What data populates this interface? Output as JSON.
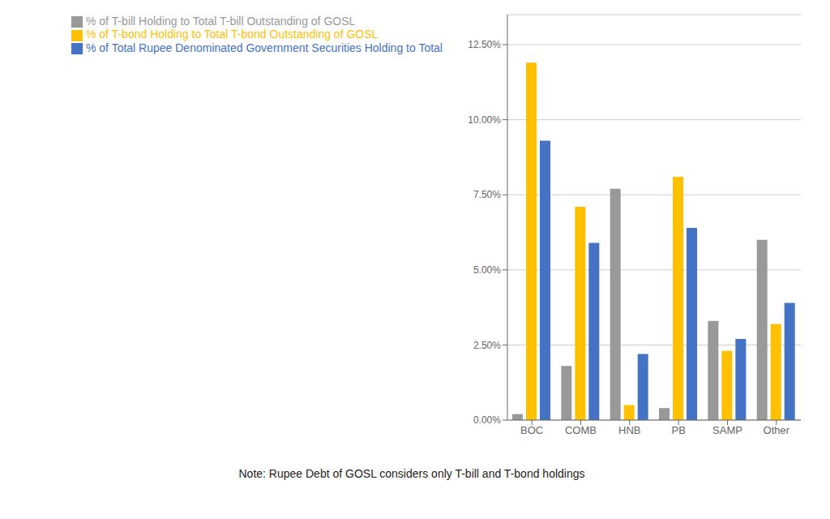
{
  "chart_data": {
    "type": "bar",
    "categories": [
      "BOC",
      "COMB",
      "HNB",
      "PB",
      "SAMP",
      "Other"
    ],
    "series": [
      {
        "name": "% of T-bill Holding to Total T-bill Outstanding of GOSL",
        "color": "#999999",
        "values": [
          0.2,
          1.8,
          7.7,
          0.4,
          3.3,
          6.0
        ]
      },
      {
        "name": "% of T-bond Holding to Total T-bond Outstanding of GOSL",
        "color": "#FFC000",
        "values": [
          11.9,
          7.1,
          0.5,
          8.1,
          2.3,
          3.2
        ]
      },
      {
        "name": "% of Total Rupee Denominated Government Securities Holding to Total",
        "color": "#4472C4",
        "values": [
          9.3,
          5.9,
          2.2,
          6.4,
          2.7,
          3.9
        ]
      }
    ],
    "ylim": [
      0,
      13.5
    ],
    "yticks": [
      {
        "value": 0.0,
        "label": "0.00%"
      },
      {
        "value": 2.5,
        "label": "2.50%"
      },
      {
        "value": 5.0,
        "label": "5.00%"
      },
      {
        "value": 7.5,
        "label": "7.50%"
      },
      {
        "value": 10.0,
        "label": "10.00%"
      },
      {
        "value": 12.5,
        "label": "12.50%"
      }
    ],
    "grid": true,
    "legend": "upper left",
    "annotations": [
      "Note: Rupee Debt of GOSL considers only T-bill and T-bond holdings"
    ]
  }
}
